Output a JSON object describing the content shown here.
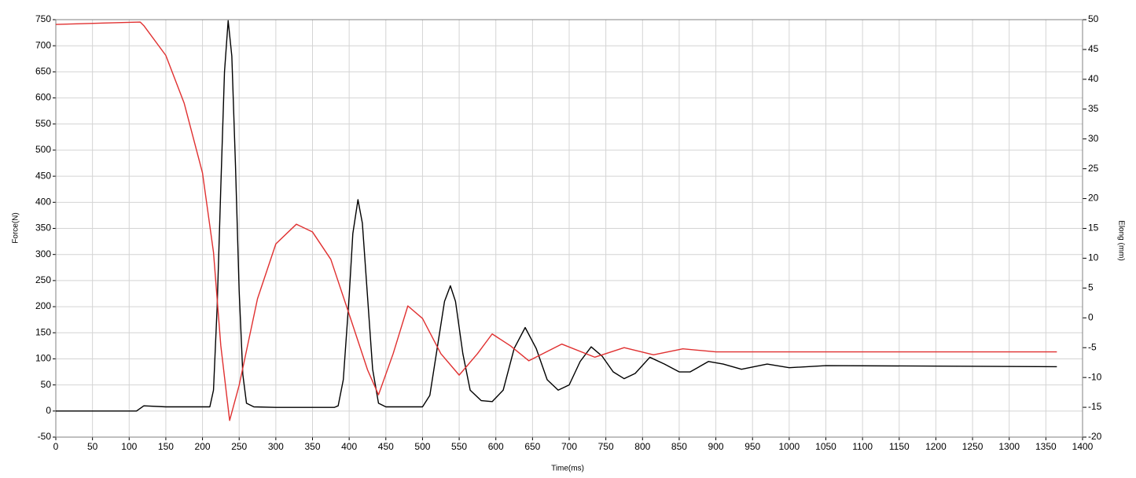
{
  "chart_data": {
    "type": "line",
    "xlabel": "Time(ms)",
    "ylabel": "Force(N)",
    "y2label": "Elong (mm)",
    "xlim": [
      0,
      1400
    ],
    "xticks": [
      0,
      50,
      100,
      150,
      200,
      250,
      300,
      350,
      400,
      450,
      500,
      550,
      600,
      650,
      700,
      750,
      800,
      850,
      900,
      950,
      1000,
      1050,
      1100,
      1150,
      1200,
      1250,
      1300,
      1350,
      1400
    ],
    "ylim": [
      -50,
      750
    ],
    "yticks": [
      -50,
      0,
      50,
      100,
      150,
      200,
      250,
      300,
      350,
      400,
      450,
      500,
      550,
      600,
      650,
      700,
      750
    ],
    "y2lim": [
      -20,
      50
    ],
    "y2ticks": [
      -20,
      -15,
      -10,
      -5,
      0,
      5,
      10,
      15,
      20,
      25,
      30,
      35,
      40,
      45,
      50
    ],
    "grid": true,
    "series": [
      {
        "color": "#000000",
        "x": [
          0,
          50,
          110,
          120,
          150,
          210,
          215,
          220,
          225,
          230,
          235,
          240,
          245,
          250,
          255,
          260,
          270,
          300,
          380,
          385,
          392,
          400,
          405,
          412,
          418,
          425,
          432,
          440,
          450,
          500,
          510,
          520,
          530,
          538,
          545,
          555,
          565,
          580,
          595,
          610,
          625,
          640,
          655,
          670,
          685,
          700,
          715,
          730,
          745,
          760,
          775,
          790,
          810,
          830,
          850,
          865,
          890,
          910,
          935,
          970,
          1000,
          1050,
          1365
        ],
        "values": [
          0,
          0,
          0,
          10,
          8,
          8,
          40,
          200,
          430,
          650,
          748,
          680,
          470,
          230,
          70,
          15,
          8,
          7,
          7,
          10,
          60,
          220,
          340,
          405,
          360,
          220,
          80,
          15,
          8,
          8,
          30,
          120,
          210,
          240,
          210,
          110,
          40,
          20,
          18,
          40,
          120,
          160,
          120,
          60,
          40,
          50,
          95,
          123,
          105,
          75,
          62,
          72,
          103,
          90,
          75,
          75,
          95,
          90,
          80,
          90,
          83,
          87,
          85
        ]
      },
      {
        "color": "#e03030",
        "axis": "y2",
        "x": [
          0,
          115,
          120,
          150,
          175,
          200,
          215,
          225,
          237,
          250,
          275,
          300,
          328,
          350,
          375,
          400,
          425,
          440,
          460,
          480,
          500,
          525,
          550,
          575,
          595,
          620,
          645,
          690,
          735,
          775,
          815,
          855,
          900,
          1365
        ],
        "values": [
          49.2,
          49.6,
          49,
          44,
          36,
          24.3,
          11,
          -4.7,
          -17.2,
          -11.3,
          3.2,
          12.4,
          15.7,
          14.4,
          9.8,
          0.6,
          -8.7,
          -12.9,
          -6,
          2,
          -0.1,
          -6,
          -9.6,
          -6,
          -2.7,
          -4.7,
          -7.2,
          -4.4,
          -6.6,
          -5,
          -6.2,
          -5.2,
          -5.7,
          -5.7
        ]
      }
    ]
  }
}
